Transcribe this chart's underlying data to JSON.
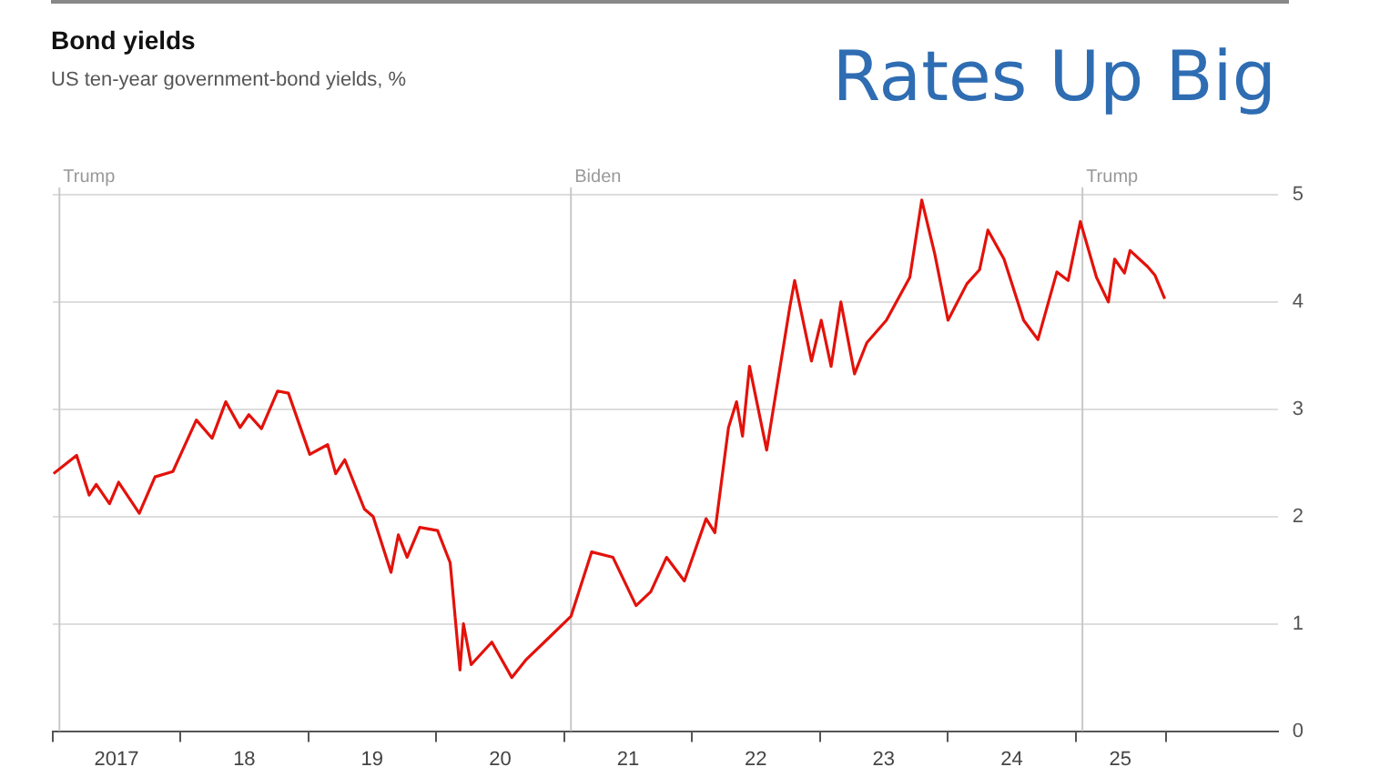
{
  "chart_data": {
    "type": "line",
    "title": "Bond yields",
    "subtitle": "US ten-year government-bond yields, %",
    "annotations": [
      "Rates Up Big"
    ],
    "x": [
      "2017-01-03",
      "2017-03-10",
      "2017-04-15",
      "2017-05-05",
      "2017-06-12",
      "2017-07-08",
      "2017-09-05",
      "2017-10-20",
      "2017-12-10",
      "2018-02-15",
      "2018-04-01",
      "2018-05-10",
      "2018-06-20",
      "2018-07-15",
      "2018-08-20",
      "2018-10-05",
      "2018-11-05",
      "2019-01-05",
      "2019-02-25",
      "2019-03-20",
      "2019-04-15",
      "2019-06-10",
      "2019-07-05",
      "2019-08-25",
      "2019-09-15",
      "2019-10-10",
      "2019-11-15",
      "2020-01-05",
      "2020-02-10",
      "2020-03-09",
      "2020-03-19",
      "2020-04-10",
      "2020-06-08",
      "2020-08-04",
      "2020-09-15",
      "2020-11-05",
      "2021-01-20",
      "2021-03-20",
      "2021-05-20",
      "2021-07-25",
      "2021-09-05",
      "2021-10-20",
      "2021-12-10",
      "2022-02-10",
      "2022-03-07",
      "2022-04-15",
      "2022-05-08",
      "2022-05-25",
      "2022-06-14",
      "2022-08-02",
      "2022-10-07",
      "2022-10-21",
      "2022-12-08",
      "2023-01-05",
      "2023-02-02",
      "2023-03-02",
      "2023-04-10",
      "2023-05-15",
      "2023-07-10",
      "2023-09-15",
      "2023-10-19",
      "2023-11-25",
      "2024-01-02",
      "2024-02-25",
      "2024-04-01",
      "2024-04-25",
      "2024-06-10",
      "2024-08-05",
      "2024-09-15",
      "2024-11-08",
      "2024-12-10",
      "2025-01-14",
      "2025-03-01",
      "2025-04-04",
      "2025-04-22",
      "2025-05-20",
      "2025-06-05",
      "2025-07-25",
      "2025-08-15",
      "2025-09-12"
    ],
    "series": [
      {
        "color": "#e3120b",
        "values": [
          2.4,
          2.57,
          2.2,
          2.3,
          2.12,
          2.32,
          2.03,
          2.37,
          2.42,
          2.9,
          2.73,
          3.07,
          2.83,
          2.95,
          2.82,
          3.17,
          3.15,
          2.58,
          2.67,
          2.4,
          2.53,
          2.07,
          2.0,
          1.48,
          1.83,
          1.62,
          1.9,
          1.87,
          1.57,
          0.57,
          1.0,
          0.62,
          0.83,
          0.5,
          0.67,
          0.83,
          1.07,
          1.67,
          1.62,
          1.17,
          1.3,
          1.62,
          1.4,
          1.98,
          1.85,
          2.83,
          3.07,
          2.75,
          3.4,
          2.62,
          3.95,
          4.2,
          3.45,
          3.83,
          3.4,
          4.0,
          3.33,
          3.62,
          3.83,
          4.23,
          4.95,
          4.45,
          3.83,
          4.17,
          4.3,
          4.67,
          4.4,
          3.83,
          3.65,
          4.28,
          4.2,
          4.75,
          4.23,
          4.0,
          4.4,
          4.27,
          4.48,
          4.33,
          4.25,
          4.03
        ]
      }
    ],
    "xlim": [
      "2017-01-01",
      "2026-08-01"
    ],
    "xticks": [
      {
        "value": "2017-01-01",
        "label": null
      },
      {
        "value": "2017-07-02",
        "label": "2017"
      },
      {
        "value": "2018-01-01",
        "label": null
      },
      {
        "value": "2018-07-02",
        "label": "18"
      },
      {
        "value": "2019-01-01",
        "label": null
      },
      {
        "value": "2019-07-02",
        "label": "19"
      },
      {
        "value": "2020-01-01",
        "label": null
      },
      {
        "value": "2020-07-02",
        "label": "20"
      },
      {
        "value": "2021-01-01",
        "label": null
      },
      {
        "value": "2021-07-02",
        "label": "21"
      },
      {
        "value": "2022-01-01",
        "label": null
      },
      {
        "value": "2022-07-02",
        "label": "22"
      },
      {
        "value": "2023-01-01",
        "label": null
      },
      {
        "value": "2023-07-02",
        "label": "23"
      },
      {
        "value": "2024-01-01",
        "label": null
      },
      {
        "value": "2024-07-02",
        "label": "24"
      },
      {
        "value": "2025-01-01",
        "label": null
      },
      {
        "value": "2025-05-08",
        "label": "25"
      },
      {
        "value": "2025-09-15",
        "label": null
      }
    ],
    "ylim": [
      0,
      5
    ],
    "yticks": [
      0,
      1,
      2,
      3,
      4,
      5
    ],
    "grid": "y",
    "legend": false,
    "marker": "none",
    "line_style": "solid",
    "ref_lines": [
      {
        "axis": "x",
        "value": "2017-01-20",
        "label": "Trump",
        "color": "#c8c8c8"
      },
      {
        "axis": "x",
        "value": "2021-01-20",
        "label": "Biden",
        "color": "#c8c8c8"
      },
      {
        "axis": "x",
        "value": "2025-01-20",
        "label": "Trump",
        "color": "#c8c8c8"
      }
    ]
  }
}
